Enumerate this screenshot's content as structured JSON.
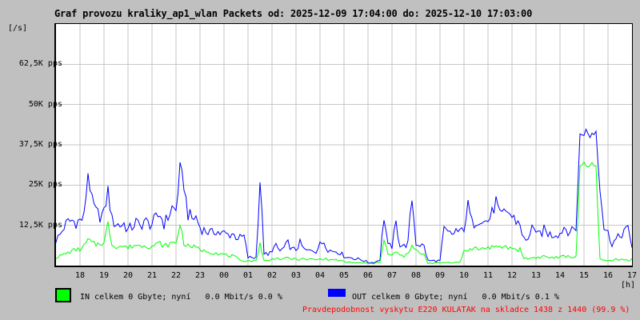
{
  "title": "Graf provozu kraliky_ap1_wlan Packets od: 2025-12-09 17:04:00 do: 2025-12-10 17:03:00",
  "y_axis_unit": "[/s]",
  "x_axis_unit": "[h]",
  "legend": {
    "in_label": "IN celkem 0 Gbyte; nyní   0.0 Mbit/s 0.0 %",
    "out_label": "OUT celkem 0 Gbyte; nyní   0.0 Mbit/s 0.1 %",
    "in_color": "#00ff00",
    "out_color": "#0000ff"
  },
  "footer_note": "Pravdepodobnost vyskytu E220 KULATAK na skladce 1438 z 1440 (99.9 %)",
  "footer_color": "#ff0000",
  "colors": {
    "background": "#c0c0c0",
    "plot_background": "#ffffff",
    "grid": "#c6c6c6",
    "border": "#000000"
  },
  "chart_data": {
    "type": "line",
    "title": "Graf provozu kraliky_ap1_wlan Packets od: 2025-12-09 17:04:00 do: 2025-12-10 17:03:00",
    "xlabel": "[h]",
    "ylabel": "[/s]",
    "ylim": [
      0,
      75000
    ],
    "grid": true,
    "legend_position": "bottom",
    "y_ticks": [
      {
        "value": 62500,
        "label": "62,5K pps"
      },
      {
        "value": 50000,
        "label": "50K pps"
      },
      {
        "value": 37500,
        "label": "37,5K pps"
      },
      {
        "value": 25000,
        "label": "25K pps"
      },
      {
        "value": 12500,
        "label": "12,5K pps"
      }
    ],
    "x_ticks": [
      "18",
      "19",
      "20",
      "21",
      "22",
      "23",
      "00",
      "01",
      "02",
      "03",
      "04",
      "05",
      "06",
      "07",
      "08",
      "09",
      "10",
      "11",
      "12",
      "13",
      "14",
      "15",
      "16",
      "17"
    ],
    "time_range": {
      "from": "2025-12-09 17:04:00",
      "to": "2025-12-10 17:03:00"
    },
    "sample_interval_minutes": 10,
    "values_unit": "Kpps",
    "series": [
      {
        "name": "OUT",
        "color": "#0000ff",
        "values": [
          8,
          9.5,
          12,
          13.5,
          14,
          13.5,
          14,
          15,
          29,
          20,
          16.5,
          15.5,
          16,
          23.5,
          14,
          13,
          12.5,
          13,
          11,
          12,
          13.5,
          12,
          14,
          13,
          13,
          14.5,
          16,
          13,
          15,
          18,
          17,
          30,
          25,
          16,
          14.5,
          15,
          12,
          11,
          10.5,
          10,
          11,
          10,
          10,
          9.5,
          10,
          9,
          8.5,
          9,
          2.5,
          2.5,
          2.5,
          26.5,
          4,
          3,
          5,
          6,
          4.5,
          5.5,
          7,
          5,
          5,
          7,
          5,
          4.5,
          5,
          4.5,
          6.5,
          7.5,
          5,
          4.5,
          4.5,
          4,
          3,
          2.5,
          2.5,
          2,
          2,
          1.5,
          1,
          1,
          1.2,
          2,
          15.5,
          6,
          6,
          13,
          6.5,
          6,
          7,
          21,
          7,
          6.5,
          6,
          1.5,
          1.5,
          1.5,
          1.5,
          11,
          10,
          9.5,
          11,
          10,
          12,
          18.5,
          13,
          14,
          15,
          13.5,
          14,
          16,
          20,
          15,
          16,
          17,
          15,
          14,
          13,
          8,
          7.5,
          13.5,
          9,
          10,
          11,
          10,
          9.5,
          10,
          10,
          12,
          11,
          10.5,
          12,
          40,
          42,
          40.5,
          41,
          42,
          25,
          12,
          10,
          7,
          8,
          9,
          11,
          11,
          6
        ]
      },
      {
        "name": "IN",
        "color": "#00ff00",
        "values": [
          2.5,
          3,
          3.5,
          4,
          4.5,
          5,
          5,
          6,
          8,
          7,
          6.5,
          7,
          7,
          13,
          6.5,
          6,
          6,
          6,
          5.5,
          6,
          6.5,
          6,
          6.5,
          6,
          6,
          6.5,
          7,
          6,
          6.5,
          7,
          7,
          13,
          7,
          6,
          6,
          5.5,
          5,
          4.5,
          4.5,
          4,
          4,
          3.5,
          3.5,
          3,
          3,
          2.5,
          1.5,
          1.5,
          1.5,
          1.5,
          1.5,
          7,
          1.5,
          1.5,
          2,
          2.5,
          2,
          2,
          2.5,
          2,
          2,
          2,
          2,
          1.8,
          2,
          1.8,
          2,
          2.2,
          1.8,
          1.8,
          1.8,
          1.5,
          1.2,
          1,
          1,
          0.8,
          0.8,
          0.8,
          0.6,
          0.6,
          0.8,
          1.2,
          8.5,
          3.5,
          3,
          4.5,
          3,
          3,
          3.5,
          6,
          4.5,
          4,
          3.5,
          0.8,
          0.8,
          0.8,
          0.8,
          1,
          1,
          1,
          1,
          1,
          4.5,
          5,
          5,
          5.5,
          5,
          5.5,
          5.5,
          6,
          5.5,
          5.5,
          6,
          5.5,
          5.5,
          5,
          5,
          2.5,
          2,
          2.5,
          2.5,
          2.5,
          3,
          2.5,
          2.5,
          2.5,
          2.5,
          3,
          2.8,
          2.5,
          3,
          30,
          31,
          30.5,
          31.5,
          30,
          2.5,
          1.5,
          1.5,
          1.5,
          2,
          2,
          2,
          1.5,
          2
        ]
      }
    ]
  }
}
